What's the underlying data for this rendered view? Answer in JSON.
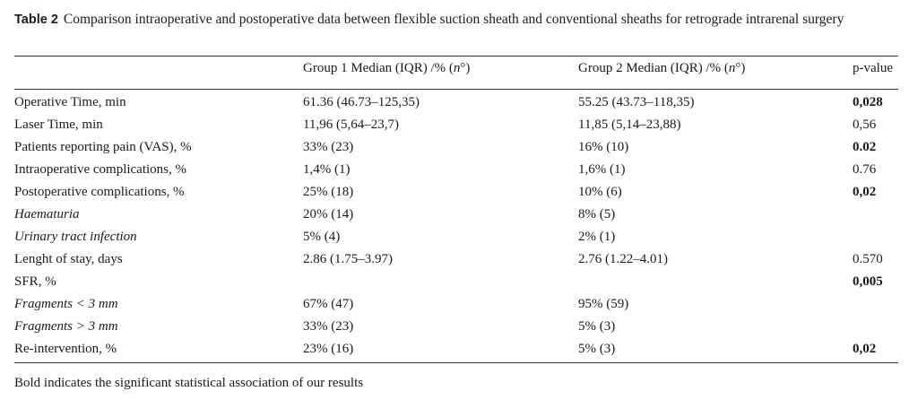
{
  "table": {
    "label": "Table 2",
    "caption": "Comparison intraoperative and postoperative data between flexible suction sheath and conventional sheaths for retrograde intrarenal surgery",
    "headers": {
      "col1": "",
      "col2": "Group 1 Median (IQR) /% (n°)",
      "col3": "Group 2 Median (IQR) /% (n°)",
      "col4": "p-value"
    },
    "rows": [
      {
        "label": "Operative Time, min",
        "g1": "61.36 (46.73–125,35)",
        "g2": "55.25 (43.73–118,35)",
        "p": "0,028",
        "bold": true,
        "italic": false
      },
      {
        "label": "Laser Time, min",
        "g1": "11,96 (5,64–23,7)",
        "g2": "11,85 (5,14–23,88)",
        "p": "0,56",
        "bold": false,
        "italic": false
      },
      {
        "label": "Patients reporting pain (VAS), %",
        "g1": "33% (23)",
        "g2": "16% (10)",
        "p": "0.02",
        "bold": true,
        "italic": false
      },
      {
        "label": "Intraoperative complications, %",
        "g1": "1,4% (1)",
        "g2": "1,6% (1)",
        "p": "0.76",
        "bold": false,
        "italic": false
      },
      {
        "label": "Postoperative complications, %",
        "g1": "25% (18)",
        "g2": "10% (6)",
        "p": "0,02",
        "bold": true,
        "italic": false
      },
      {
        "label": "Haematuria",
        "g1": "20% (14)",
        "g2": "8% (5)",
        "p": "",
        "bold": false,
        "italic": true
      },
      {
        "label": "Urinary tract infection",
        "g1": "5% (4)",
        "g2": "2% (1)",
        "p": "",
        "bold": false,
        "italic": true
      },
      {
        "label": "Lenght of stay, days",
        "g1": "2.86 (1.75–3.97)",
        "g2": "2.76 (1.22–4.01)",
        "p": "0.570",
        "bold": false,
        "italic": false
      },
      {
        "label": "SFR, %",
        "g1": "",
        "g2": "",
        "p": "0,005",
        "bold": true,
        "italic": false
      },
      {
        "label": "Fragments < 3 mm",
        "g1": "67% (47)",
        "g2": "95% (59)",
        "p": "",
        "bold": false,
        "italic": true
      },
      {
        "label": "Fragments > 3 mm",
        "g1": "33% (23)",
        "g2": "5% (3)",
        "p": "",
        "bold": false,
        "italic": true
      },
      {
        "label": "Re-intervention, %",
        "g1": "23% (16)",
        "g2": "5% (3)",
        "p": "0,02",
        "bold": true,
        "italic": false
      }
    ],
    "footnote": "Bold indicates the significant statistical association of our results"
  }
}
